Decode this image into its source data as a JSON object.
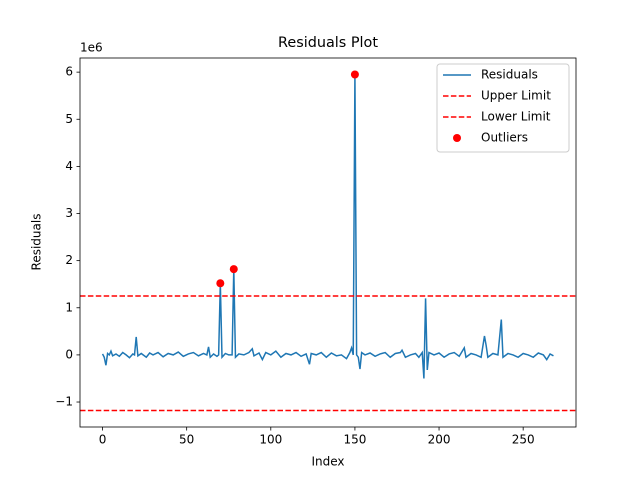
{
  "chart_data": {
    "type": "line",
    "title": "Residuals Plot",
    "xlabel": "Index",
    "ylabel": "Residuals",
    "y_offset_label": "1e6",
    "xlim": [
      -13.4,
      281.4
    ],
    "ylim": [
      -1530000,
      6300000
    ],
    "xticks": [
      0,
      50,
      100,
      150,
      200,
      250
    ],
    "yticks": [
      {
        "value": -1000000,
        "label": "−1"
      },
      {
        "value": 0,
        "label": "0"
      },
      {
        "value": 1000000,
        "label": "1"
      },
      {
        "value": 2000000,
        "label": "2"
      },
      {
        "value": 3000000,
        "label": "3"
      },
      {
        "value": 4000000,
        "label": "4"
      },
      {
        "value": 5000000,
        "label": "5"
      },
      {
        "value": 6000000,
        "label": "6"
      }
    ],
    "legend": "upper right",
    "series": [
      {
        "name": "Residuals",
        "type": "line",
        "color": "#1f77b4",
        "x": [
          0,
          1,
          2,
          3,
          4,
          5,
          6,
          8,
          10,
          12,
          14,
          16,
          18,
          19,
          20,
          21,
          23,
          26,
          28,
          30,
          33,
          36,
          39,
          42,
          45,
          48,
          51,
          54,
          57,
          60,
          62,
          63,
          64,
          66,
          68,
          69,
          70,
          71,
          73,
          75,
          77,
          78,
          79,
          81,
          84,
          87,
          89,
          90,
          93,
          95,
          97,
          100,
          103,
          106,
          109,
          112,
          115,
          118,
          121,
          123,
          124,
          127,
          130,
          133,
          136,
          139,
          142,
          145,
          147,
          148,
          149,
          150,
          151,
          152,
          153,
          154,
          156,
          159,
          162,
          165,
          168,
          171,
          174,
          177,
          178,
          180,
          183,
          186,
          188,
          190,
          191,
          192,
          193,
          194,
          197,
          200,
          203,
          206,
          209,
          212,
          215,
          216,
          219,
          222,
          225,
          227,
          228,
          229,
          232,
          235,
          237,
          238,
          241,
          244,
          247,
          250,
          253,
          256,
          259,
          262,
          264,
          266,
          268
        ],
        "values": [
          20000.0,
          -50000.0,
          -220000.0,
          30000.0,
          0,
          80000.0,
          -20000.0,
          20000.0,
          -30000.0,
          50000.0,
          0,
          -60000.0,
          20000.0,
          0,
          380000.0,
          -20000.0,
          30000.0,
          -50000.0,
          40000.0,
          0,
          50000.0,
          -40000.0,
          30000.0,
          0,
          60000.0,
          -30000.0,
          20000.0,
          50000.0,
          -20000.0,
          30000.0,
          0,
          170000.0,
          -50000.0,
          20000.0,
          -30000.0,
          0,
          1520000.0,
          -50000.0,
          30000.0,
          0,
          0,
          1820000.0,
          -50000.0,
          20000.0,
          0,
          50000.0,
          130000.0,
          -20000.0,
          40000.0,
          -100000.0,
          50000.0,
          0,
          80000.0,
          -50000.0,
          30000.0,
          0,
          50000.0,
          -30000.0,
          20000.0,
          -200000.0,
          30000.0,
          0,
          50000.0,
          -50000.0,
          40000.0,
          -20000.0,
          0,
          -80000.0,
          50000.0,
          150000.0,
          0,
          5950000.0,
          0,
          -50000.0,
          -300000.0,
          50000.0,
          0,
          40000.0,
          -30000.0,
          20000.0,
          50000.0,
          -50000.0,
          30000.0,
          50000.0,
          100000.0,
          -50000.0,
          0,
          30000.0,
          -50000.0,
          50000.0,
          -500000.0,
          1200000.0,
          -320000.0,
          50000.0,
          0,
          40000.0,
          -50000.0,
          20000.0,
          50000.0,
          -30000.0,
          150000.0,
          -50000.0,
          30000.0,
          0,
          -50000.0,
          400000.0,
          200000.0,
          -50000.0,
          30000.0,
          0,
          750000.0,
          -50000.0,
          30000.0,
          0,
          -50000.0,
          30000.0,
          0,
          -50000.0,
          40000.0,
          0,
          -100000.0,
          20000.0,
          -20000.0
        ]
      },
      {
        "name": "Upper Limit",
        "type": "hline",
        "color": "#ff0000",
        "dashed": true,
        "value": 1250000
      },
      {
        "name": "Lower Limit",
        "type": "hline",
        "color": "#ff0000",
        "dashed": true,
        "value": -1180000
      },
      {
        "name": "Outliers",
        "type": "scatter",
        "color": "#ff0000",
        "x": [
          70,
          78,
          150
        ],
        "values": [
          1520000,
          1820000,
          5950000
        ]
      }
    ]
  }
}
